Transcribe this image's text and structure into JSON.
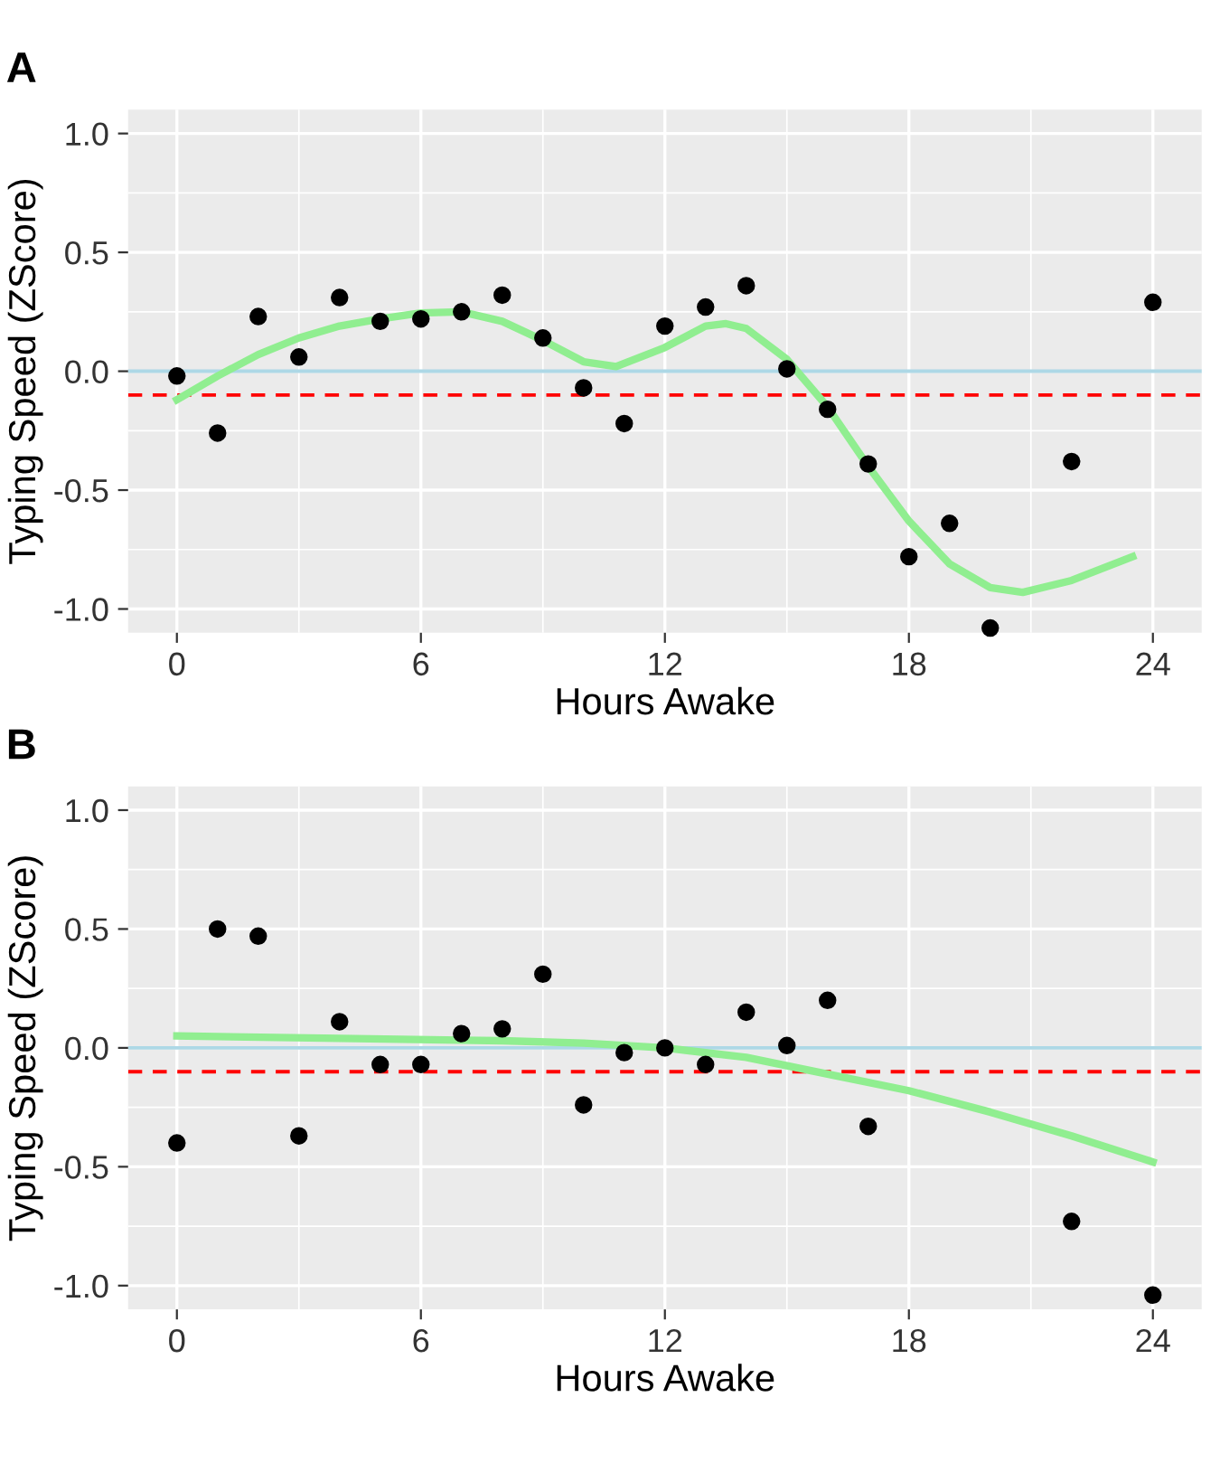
{
  "chart_data": [
    {
      "type": "scatter",
      "title": "A",
      "xlabel": "Hours Awake",
      "ylabel": "Typing Speed (ZScore)",
      "xlim": [
        -1.2,
        25.2
      ],
      "ylim": [
        -1.1,
        1.1
      ],
      "xticks": [
        0,
        6,
        12,
        18,
        24
      ],
      "yticks": [
        {
          "value": -1.0,
          "label": "-1.0"
        },
        {
          "value": -0.5,
          "label": "-0.5"
        },
        {
          "value": 0.0,
          "label": "0.0"
        },
        {
          "value": 0.5,
          "label": "0.5"
        },
        {
          "value": 1.0,
          "label": "1.0"
        }
      ],
      "grid": true,
      "legend": false,
      "series": [
        {
          "marker": "circle",
          "color": "#000000",
          "x": [
            0,
            1,
            2,
            3,
            4,
            5,
            6,
            7,
            8,
            9,
            10,
            11,
            12,
            13,
            14,
            15,
            16,
            17,
            18,
            19,
            20,
            22,
            24
          ],
          "values": [
            -0.02,
            -0.26,
            0.23,
            0.06,
            0.31,
            0.21,
            0.22,
            0.25,
            0.32,
            0.14,
            -0.07,
            -0.22,
            0.19,
            0.27,
            0.36,
            0.01,
            -0.16,
            -0.39,
            -0.78,
            -0.64,
            -1.08,
            -0.38,
            0.29
          ]
        },
        {
          "type": "line",
          "color": "#90ee90",
          "x": [
            0,
            1,
            2,
            3,
            4,
            5,
            6,
            7,
            8,
            9,
            10,
            10.8,
            12,
            13,
            13.5,
            14,
            15,
            16,
            17,
            18,
            19,
            20,
            20.8,
            22,
            23.5
          ],
          "values": [
            -0.12,
            -0.02,
            0.07,
            0.14,
            0.19,
            0.22,
            0.245,
            0.25,
            0.21,
            0.13,
            0.04,
            0.02,
            0.1,
            0.19,
            0.2,
            0.18,
            0.05,
            -0.15,
            -0.4,
            -0.63,
            -0.81,
            -0.91,
            -0.93,
            -0.88,
            -0.78
          ]
        }
      ],
      "ref_lines": [
        {
          "axis": "y",
          "value": 0,
          "color": "#add8e6",
          "line_style": "solid"
        },
        {
          "axis": "y",
          "value": -0.1,
          "color": "#ff0000",
          "line_style": "dashed"
        }
      ]
    },
    {
      "type": "scatter",
      "title": "B",
      "xlabel": "Hours Awake",
      "ylabel": "Typing Speed (ZScore)",
      "xlim": [
        -1.2,
        25.2
      ],
      "ylim": [
        -1.1,
        1.1
      ],
      "xticks": [
        0,
        6,
        12,
        18,
        24
      ],
      "yticks": [
        {
          "value": -1.0,
          "label": "-1.0"
        },
        {
          "value": -0.5,
          "label": "-0.5"
        },
        {
          "value": 0.0,
          "label": "0.0"
        },
        {
          "value": 0.5,
          "label": "0.5"
        },
        {
          "value": 1.0,
          "label": "1.0"
        }
      ],
      "grid": true,
      "legend": false,
      "series": [
        {
          "marker": "circle",
          "color": "#000000",
          "x": [
            0,
            1,
            2,
            3,
            4,
            5,
            6,
            7,
            8,
            9,
            10,
            11,
            12,
            13,
            14,
            15,
            16,
            17,
            22,
            24
          ],
          "values": [
            -0.4,
            0.5,
            0.47,
            -0.37,
            0.11,
            -0.07,
            -0.07,
            0.06,
            0.08,
            0.31,
            -0.24,
            -0.02,
            0.0,
            -0.07,
            0.15,
            0.01,
            0.2,
            -0.33,
            -0.73,
            -1.04
          ]
        },
        {
          "type": "line",
          "color": "#90ee90",
          "x": [
            0,
            4,
            8,
            10,
            12,
            14,
            16,
            18,
            20,
            22,
            24
          ],
          "values": [
            0.05,
            0.04,
            0.03,
            0.02,
            0.0,
            -0.04,
            -0.11,
            -0.18,
            -0.27,
            -0.37,
            -0.48
          ]
        }
      ],
      "ref_lines": [
        {
          "axis": "y",
          "value": 0,
          "color": "#add8e6",
          "line_style": "solid"
        },
        {
          "axis": "y",
          "value": -0.1,
          "color": "#ff0000",
          "line_style": "dashed"
        }
      ]
    }
  ]
}
